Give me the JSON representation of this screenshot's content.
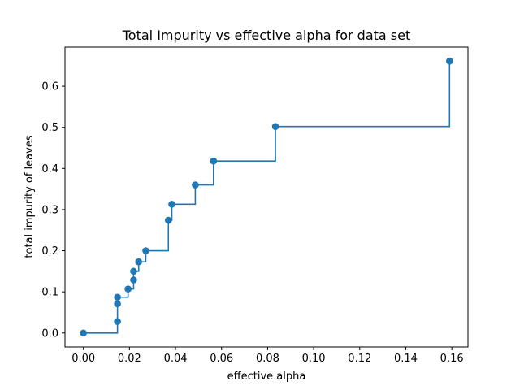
{
  "chart_data": {
    "type": "line",
    "title": "Total Impurity vs effective alpha for data set",
    "xlabel": "effective alpha",
    "ylabel": "total impurity of leaves",
    "xlim": [
      -0.008,
      0.167
    ],
    "ylim": [
      -0.034,
      0.695
    ],
    "xticks": [
      "0.00",
      "0.02",
      "0.04",
      "0.06",
      "0.08",
      "0.10",
      "0.12",
      "0.14",
      "0.16"
    ],
    "yticks": [
      "0.0",
      "0.1",
      "0.2",
      "0.3",
      "0.4",
      "0.5",
      "0.6"
    ],
    "grid": false,
    "step": "post",
    "marker": "circle",
    "color": "#1f77b4",
    "series": [
      {
        "x": [
          0.0,
          0.0148,
          0.0148,
          0.0148,
          0.0194,
          0.0218,
          0.0218,
          0.024,
          0.0271,
          0.0369,
          0.0384,
          0.0486,
          0.0565,
          0.0834,
          0.159
        ],
        "y": [
          0.0,
          0.028,
          0.071,
          0.087,
          0.107,
          0.129,
          0.15,
          0.173,
          0.2,
          0.274,
          0.313,
          0.36,
          0.418,
          0.502,
          0.661
        ]
      }
    ]
  }
}
